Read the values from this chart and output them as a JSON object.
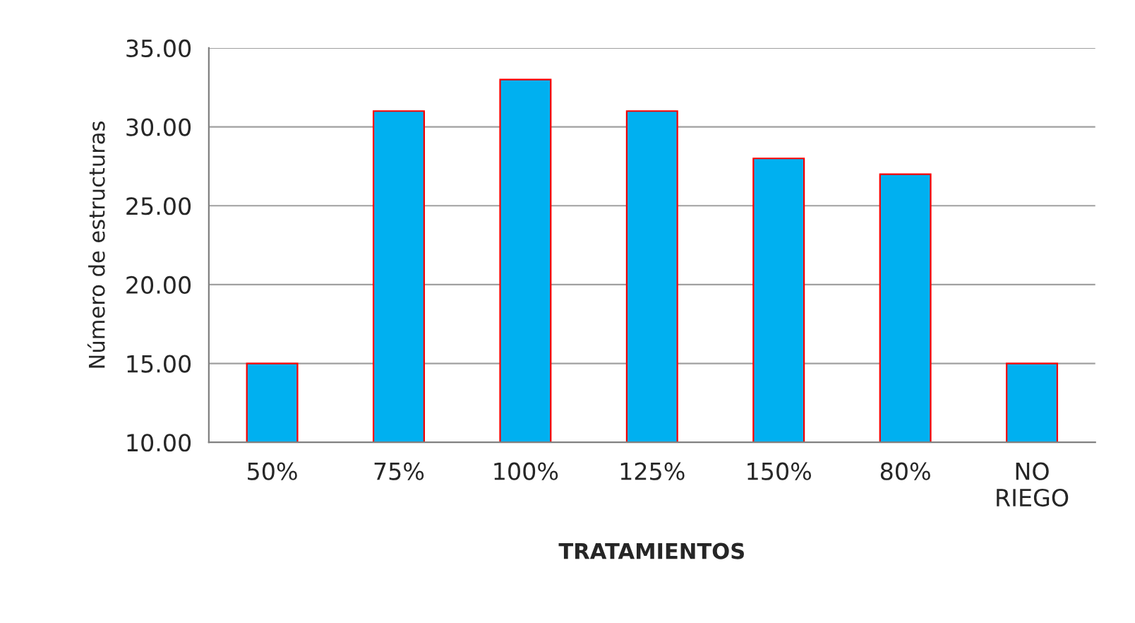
{
  "chart_data": {
    "type": "bar",
    "xlabel": "TRATAMIENTOS",
    "ylabel": "Número de estructuras",
    "categories": [
      "50%",
      "75%",
      "100%",
      "125%",
      "150%",
      "80%",
      "NO\nRIEGO"
    ],
    "values": [
      15,
      31,
      33,
      31,
      28,
      27,
      15
    ],
    "color": "#00b0f0",
    "ylim": [
      10,
      35
    ],
    "yticks": [
      {
        "value": 10,
        "label": "10.00"
      },
      {
        "value": 15,
        "label": "15.00"
      },
      {
        "value": 20,
        "label": "20.00"
      },
      {
        "value": 25,
        "label": "25.00"
      },
      {
        "value": 30,
        "label": "30.00"
      },
      {
        "value": 35,
        "label": "35.00"
      }
    ],
    "grid": "y"
  }
}
